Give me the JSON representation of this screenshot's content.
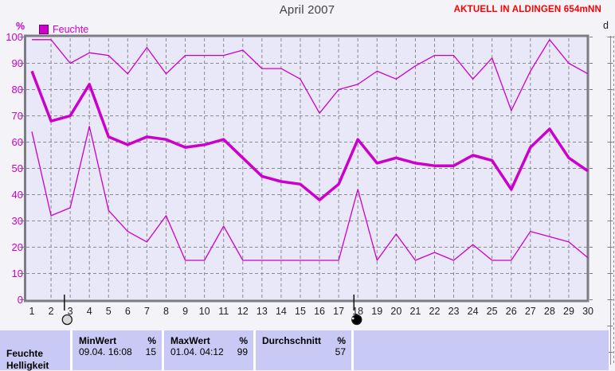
{
  "header": {
    "title": "April 2007",
    "status": "AKTUELL IN ALDINGEN 654mNN",
    "right_axis_label": "d"
  },
  "legend": {
    "label": "Feuchte"
  },
  "colors": {
    "accent": "#cc00cc",
    "status_red": "#ff0000",
    "plot_bg": "#e8e8f8",
    "grid": "#8a8a92",
    "frame": "#7d7d85",
    "table_bg": "#c9c9f5",
    "tick_text": "#222222"
  },
  "chart_data": {
    "type": "line",
    "title": "April 2007",
    "xlabel": "",
    "ylabel": "%",
    "ylim": [
      0,
      100
    ],
    "ytick_step": 10,
    "xlim": [
      1,
      30
    ],
    "grid": true,
    "legend_position": "top-left",
    "x": [
      1,
      2,
      3,
      4,
      5,
      6,
      7,
      8,
      9,
      10,
      11,
      12,
      13,
      14,
      15,
      16,
      17,
      18,
      19,
      20,
      21,
      22,
      23,
      24,
      25,
      26,
      27,
      28,
      29,
      30
    ],
    "series": [
      {
        "name": "Feuchte Maximum",
        "role": "max",
        "line": "thin",
        "values": [
          99,
          99,
          90,
          94,
          93,
          86,
          96,
          86,
          93,
          93,
          93,
          95,
          88,
          88,
          84,
          71,
          80,
          82,
          87,
          84,
          89,
          93,
          93,
          84,
          92,
          72,
          87,
          99,
          90,
          86
        ]
      },
      {
        "name": "Feuchte Durchschnitt",
        "role": "avg",
        "line": "thick",
        "values": [
          87,
          68,
          70,
          82,
          62,
          59,
          62,
          61,
          58,
          59,
          61,
          54,
          47,
          45,
          44,
          38,
          44,
          61,
          52,
          54,
          52,
          51,
          51,
          55,
          53,
          42,
          58,
          65,
          54,
          49
        ]
      },
      {
        "name": "Feuchte Minimum",
        "role": "min",
        "line": "thin",
        "values": [
          64,
          32,
          35,
          66,
          34,
          26,
          22,
          32,
          15,
          15,
          28,
          15,
          15,
          15,
          15,
          15,
          15,
          42,
          15,
          25,
          15,
          18,
          15,
          21,
          15,
          15,
          26,
          24,
          22,
          16
        ]
      }
    ],
    "moon_markers": [
      {
        "day": 2.8,
        "phase": "full"
      },
      {
        "day": 17.9,
        "phase": "new"
      }
    ]
  },
  "table": {
    "row_label": "Feuchte",
    "next_row_label": "Helligkeit",
    "columns": [
      {
        "header": "MinWert",
        "unit": "%",
        "date": "09.04. 16:08",
        "value": "15"
      },
      {
        "header": "MaxWert",
        "unit": "%",
        "date": "01.04. 04:12",
        "value": "99"
      },
      {
        "header": "Durchschnitt",
        "unit": "%",
        "date": "",
        "value": "57"
      }
    ]
  }
}
